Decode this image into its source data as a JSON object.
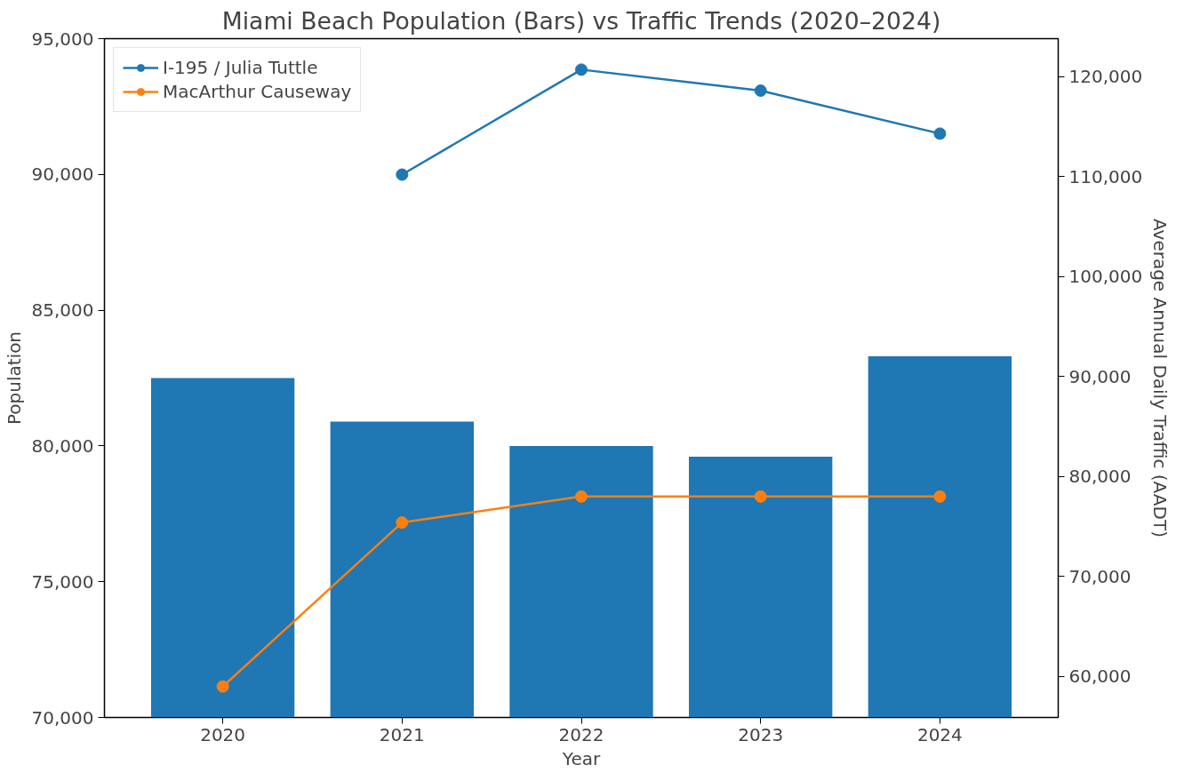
{
  "chart_data": {
    "type": "bar",
    "title": "Miami Beach Population (Bars) vs Traffic Trends (2020–2024)",
    "xlabel": "Year",
    "ylabel": "Population",
    "y2label": "Average Annual Daily Traffic (AADT)",
    "categories": [
      "2020",
      "2021",
      "2022",
      "2023",
      "2024"
    ],
    "series": [
      {
        "color": "#1f77b4",
        "values": [
          82500,
          80900,
          80000,
          79600,
          83300
        ]
      },
      {
        "type": "line",
        "name": "I-195 / Julia Tuttle",
        "axis": "y2",
        "color": "#1f77b4",
        "values": [
          null,
          110200,
          120700,
          118600,
          114300
        ]
      },
      {
        "type": "line",
        "name": "MacArthur Causeway",
        "axis": "y2",
        "color": "#ff7f0e",
        "values": [
          59000,
          75400,
          78000,
          78000,
          78000
        ]
      }
    ],
    "ylim": [
      70000,
      95000
    ],
    "yticks": [
      {
        "value": 70000,
        "label": "70,000"
      },
      {
        "value": 75000,
        "label": "75,000"
      },
      {
        "value": 80000,
        "label": "80,000"
      },
      {
        "value": 85000,
        "label": "85,000"
      },
      {
        "value": 90000,
        "label": "90,000"
      },
      {
        "value": 95000,
        "label": "95,000"
      }
    ],
    "y2lim": [
      55900,
      123800
    ],
    "y2ticks": [
      {
        "value": 60000,
        "label": "60,000"
      },
      {
        "value": 70000,
        "label": "70,000"
      },
      {
        "value": 80000,
        "label": "80,000"
      },
      {
        "value": 90000,
        "label": "90,000"
      },
      {
        "value": 100000,
        "label": "100,000"
      },
      {
        "value": 110000,
        "label": "110,000"
      },
      {
        "value": 120000,
        "label": "120,000"
      }
    ],
    "marker": "circle",
    "line_style": "solid",
    "legend": "top left",
    "grid": false
  }
}
